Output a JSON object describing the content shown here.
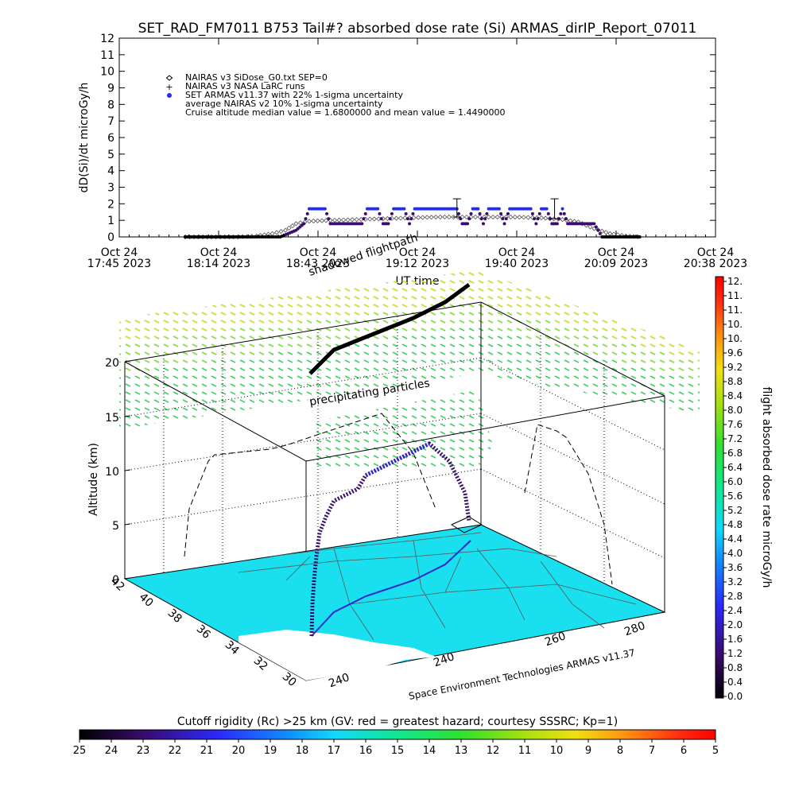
{
  "title": "SET_RAD_FM7011  B753 Tail#? absorbed dose rate (Si) ARMAS_dirIP_Report_07011",
  "chart_data": [
    {
      "type": "scatter",
      "title": "SET_RAD_FM7011  B753 Tail#? absorbed dose rate (Si) ARMAS_dirIP_Report_07011",
      "xlabel": "UT time",
      "ylabel": "dD(Si)/dt microGy/h",
      "ylim": [
        0,
        12
      ],
      "y_ticks": [
        "0",
        "1",
        "2",
        "3",
        "4",
        "5",
        "6",
        "7",
        "8",
        "9",
        "10",
        "11",
        "12"
      ],
      "x_ticks": [
        {
          "line1": "Oct 24",
          "line2": "17:45 2023"
        },
        {
          "line1": "Oct 24",
          "line2": "18:14 2023"
        },
        {
          "line1": "Oct 24",
          "line2": "18:43 2023"
        },
        {
          "line1": "Oct 24",
          "line2": "19:12 2023"
        },
        {
          "line1": "Oct 24",
          "line2": "19:40 2023"
        },
        {
          "line1": "Oct 24",
          "line2": "20:09 2023"
        },
        {
          "line1": "Oct 24",
          "line2": "20:38 2023"
        }
      ],
      "legend": [
        {
          "marker": "diamond",
          "text": "NAIRAS v3 SiDose_G0.txt SEP=0"
        },
        {
          "marker": "plus",
          "text": "NAIRAS v3 NASA LaRC runs"
        },
        {
          "marker": "dot",
          "text": "SET ARMAS v11.37 with 22% 1-sigma uncertainty"
        },
        {
          "marker": "none",
          "text": "average NAIRAS v2 10% 1-sigma uncertainty"
        },
        {
          "marker": "none",
          "text": "Cruise altitude median value = 1.6800000 and mean value = 1.4490000"
        }
      ],
      "legend_position": "top-left",
      "x_range_min": [
        0,
        173
      ],
      "armas_series": {
        "name": "SET ARMAS v11.37",
        "points": [
          [
            25,
            0
          ],
          [
            29,
            0
          ],
          [
            33,
            0
          ],
          [
            37,
            0
          ],
          [
            41,
            0
          ],
          [
            45,
            0
          ],
          [
            49,
            0
          ],
          [
            53,
            0
          ],
          [
            57,
            0
          ],
          [
            61,
            0
          ],
          [
            64,
            0.2
          ],
          [
            67,
            0.4
          ],
          [
            70,
            0.8
          ],
          [
            72,
            1.7
          ],
          [
            74,
            1.7
          ],
          [
            76,
            1.7
          ],
          [
            78,
            1.7
          ],
          [
            80,
            0.8
          ],
          [
            83,
            0.8
          ],
          [
            86,
            0.8
          ],
          [
            89,
            0.8
          ],
          [
            92,
            0.8
          ],
          [
            94,
            1.7
          ],
          [
            96,
            1.7
          ],
          [
            98,
            1.7
          ],
          [
            100,
            0.8
          ],
          [
            102,
            0.8
          ],
          [
            104,
            1.7
          ],
          [
            106,
            1.7
          ],
          [
            108,
            1.7
          ],
          [
            110,
            0.8
          ],
          [
            112,
            1.7
          ],
          [
            114,
            1.7
          ],
          [
            116,
            1.7
          ],
          [
            118,
            1.7
          ],
          [
            120,
            1.7
          ],
          [
            122,
            1.7
          ],
          [
            124,
            1.7
          ],
          [
            126,
            1.7
          ],
          [
            128,
            1.7
          ],
          [
            130,
            0.8
          ],
          [
            132,
            0.8
          ],
          [
            134,
            1.7
          ],
          [
            136,
            1.7
          ],
          [
            138,
            0.8
          ],
          [
            140,
            1.7
          ],
          [
            142,
            1.7
          ],
          [
            144,
            1.7
          ],
          [
            146,
            0.8
          ],
          [
            148,
            1.7
          ],
          [
            150,
            1.7
          ],
          [
            152,
            1.7
          ],
          [
            154,
            1.7
          ],
          [
            156,
            1.7
          ],
          [
            158,
            0.8
          ],
          [
            160,
            1.7
          ],
          [
            162,
            1.7
          ],
          [
            164,
            0.8
          ],
          [
            166,
            0.8
          ],
          [
            168,
            1.7
          ],
          [
            170,
            0.8
          ],
          [
            172,
            0.8
          ],
          [
            174,
            0.8
          ],
          [
            177,
            0.8
          ],
          [
            180,
            0.8
          ],
          [
            183,
            0
          ],
          [
            186,
            0
          ],
          [
            189,
            0
          ],
          [
            192,
            0
          ],
          [
            195,
            0
          ],
          [
            198,
            0
          ]
        ]
      },
      "nairas_series": {
        "name": "NAIRAS v3 SiDose_G0.txt SEP=0",
        "points": [
          [
            25,
            0
          ],
          [
            35,
            0
          ],
          [
            45,
            0
          ],
          [
            52,
            0.05
          ],
          [
            58,
            0.2
          ],
          [
            63,
            0.4
          ],
          [
            67,
            0.8
          ],
          [
            72,
            0.95
          ],
          [
            80,
            1.0
          ],
          [
            90,
            1.05
          ],
          [
            100,
            1.1
          ],
          [
            110,
            1.15
          ],
          [
            120,
            1.2
          ],
          [
            130,
            1.2
          ],
          [
            140,
            1.2
          ],
          [
            150,
            1.2
          ],
          [
            160,
            1.15
          ],
          [
            168,
            1.05
          ],
          [
            174,
            0.9
          ],
          [
            180,
            0.5
          ],
          [
            186,
            0.2
          ],
          [
            192,
            0.05
          ],
          [
            198,
            0
          ]
        ]
      },
      "error_bars": [
        {
          "x": 128,
          "y": 1.7,
          "low": 1.2,
          "high": 2.3
        },
        {
          "x": 165,
          "y": 1.7,
          "low": 1.1,
          "high": 2.3
        }
      ]
    },
    {
      "type": "scatter",
      "title": "",
      "zlabel": "Altitude (km)",
      "z_ticks": [
        "0",
        "5",
        "10",
        "15",
        "20"
      ],
      "lat_ticks": [
        "42",
        "40",
        "38",
        "36",
        "34",
        "32",
        "30"
      ],
      "lon_ticks_front": [
        "240"
      ],
      "lon_ticks_right": [
        "240",
        "260",
        "280"
      ],
      "annotations": [
        {
          "key": "shadowed",
          "text": "shadowed flightpath"
        },
        {
          "key": "precip",
          "text": "precipitating particles"
        }
      ],
      "credit": "Space Environment Technologies ARMAS v11.37"
    }
  ],
  "colorbar_right": {
    "label": "flight absorbed dose rate microGy/h",
    "ticks": [
      "0.0",
      "0.4",
      "0.8",
      "1.2",
      "1.6",
      "2.0",
      "2.4",
      "2.8",
      "3.2",
      "3.6",
      "4.0",
      "4.4",
      "4.8",
      "5.2",
      "5.6",
      "6.0",
      "6.4",
      "6.8",
      "7.2",
      "7.6",
      "8.0",
      "8.4",
      "8.8",
      "9.2",
      "9.6",
      "10.",
      "10.",
      "11.",
      "11.",
      "12."
    ],
    "range": [
      0,
      12
    ]
  },
  "colorbar_bottom": {
    "label": "Cutoff rigidity (Rc) >25 km (GV: red = greatest hazard; courtesy SSSRC; Kp=1)",
    "ticks": [
      "25",
      "24",
      "23",
      "22",
      "21",
      "20",
      "19",
      "18",
      "17",
      "16",
      "15",
      "14",
      "13",
      "12",
      "11",
      "10",
      "9",
      "8",
      "7",
      "6",
      "5"
    ]
  },
  "colors": {
    "armas": "#1f2cff",
    "armas_low": "#3a0f6b",
    "map_fill": "#19dfee",
    "flight_black": "#000000"
  }
}
